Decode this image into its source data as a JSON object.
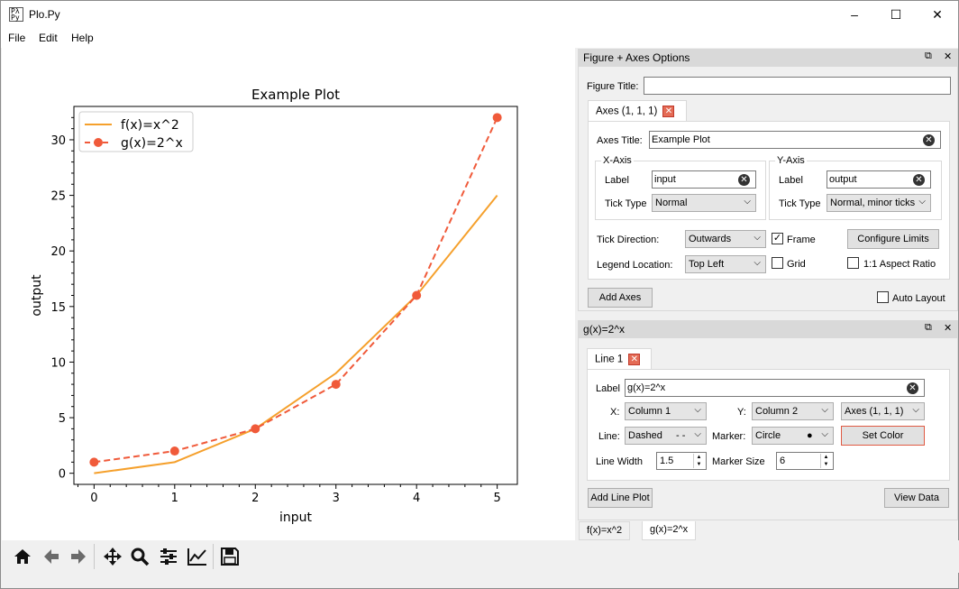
{
  "window": {
    "title": "Plo.Py",
    "icon_text": "Pλ Py",
    "minimize": "–",
    "maximize": "☐",
    "close": "✕"
  },
  "menu": [
    "File",
    "Edit",
    "Help"
  ],
  "chart_data": {
    "type": "line",
    "title": "Example Plot",
    "xlabel": "input",
    "ylabel": "output",
    "x": [
      0,
      1,
      2,
      3,
      4,
      5
    ],
    "xlim": [
      -0.25,
      5.25
    ],
    "ylim": [
      -1.0,
      33.0
    ],
    "xticks": [
      0,
      1,
      2,
      3,
      4,
      5
    ],
    "yticks": [
      0,
      5,
      10,
      15,
      20,
      25,
      30
    ],
    "minor_ticks": true,
    "legend_loc": "upper left",
    "series": [
      {
        "name": "f(x)=x^2",
        "values": [
          0,
          1,
          4,
          9,
          16,
          25
        ],
        "color": "#f5a02c",
        "linestyle": "solid",
        "marker": "none"
      },
      {
        "name": "g(x)=2^x",
        "values": [
          1,
          2,
          4,
          8,
          16,
          32
        ],
        "color": "#f05a3a",
        "linestyle": "dashed",
        "marker": "circle"
      }
    ]
  },
  "toolbar": [
    "home-icon",
    "back-icon",
    "forward-icon",
    "pan-icon",
    "zoom-icon",
    "subplots-icon",
    "axes-edit-icon",
    "save-icon"
  ],
  "fig_panel": {
    "title": "Figure + Axes Options",
    "float_icon": "⧉",
    "close_icon": "✕",
    "figure_title_label": "Figure Title:",
    "figure_title_value": "",
    "axes_tab": "Axes (1, 1, 1)",
    "axes_title_label": "Axes Title:",
    "axes_title_value": "Example Plot",
    "xaxis": {
      "group": "X-Axis",
      "label_label": "Label",
      "label_value": "input",
      "ticktype_label": "Tick Type",
      "ticktype_value": "Normal"
    },
    "yaxis": {
      "group": "Y-Axis",
      "label_label": "Label",
      "label_value": "output",
      "ticktype_label": "Tick Type",
      "ticktype_value": "Normal, minor ticks"
    },
    "tick_direction_label": "Tick Direction:",
    "tick_direction_value": "Outwards",
    "frame_label": "Frame",
    "frame_checked": "✓",
    "configure_limits": "Configure Limits",
    "legend_location_label": "Legend Location:",
    "legend_location_value": "Top Left",
    "grid_label": "Grid",
    "aspect_label": "1:1 Aspect Ratio",
    "add_axes": "Add Axes",
    "auto_layout": "Auto Layout"
  },
  "line_panel": {
    "title": "g(x)=2^x",
    "tab": "Line 1",
    "label_label": "Label",
    "label_value": "g(x)=2^x",
    "x_label": "X:",
    "x_value": "Column 1",
    "y_label": "Y:",
    "y_value": "Column 2",
    "axes_value": "Axes (1, 1, 1)",
    "line_label": "Line:",
    "line_value": "Dashed",
    "line_glyph": "- -",
    "marker_label": "Marker:",
    "marker_value": "Circle",
    "marker_glyph": "●",
    "set_color": "Set Color",
    "line_width_label": "Line Width",
    "line_width_value": "1.5",
    "marker_size_label": "Marker Size",
    "marker_size_value": "6",
    "add_line_plot": "Add Line Plot",
    "view_data": "View Data"
  },
  "bottom_tabs": [
    "f(x)=x^2",
    "g(x)=2^x"
  ]
}
